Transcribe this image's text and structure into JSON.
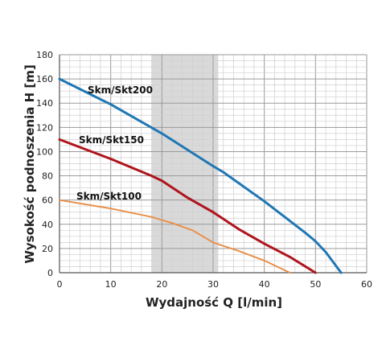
{
  "chart_data": {
    "type": "line",
    "xlabel": "Wydajność Q [l/min]",
    "ylabel": "Wysokość podnoszenia H [m]",
    "xlim": [
      0,
      60
    ],
    "ylim": [
      0,
      180
    ],
    "x_ticks": [
      "0",
      "10",
      "20",
      "30",
      "40",
      "50",
      "60"
    ],
    "y_ticks": [
      "0",
      "20",
      "40",
      "60",
      "80",
      "100",
      "120",
      "140",
      "160",
      "180"
    ],
    "grid": true,
    "highlight_band": {
      "x_from": 18,
      "x_to": 31,
      "color": "#d9d9d9"
    },
    "series": [
      {
        "name": "Skm/Skt200",
        "color": "#1f77b4",
        "points": [
          [
            0,
            160
          ],
          [
            10,
            139
          ],
          [
            20,
            115
          ],
          [
            30,
            88
          ],
          [
            32,
            83
          ],
          [
            40,
            59
          ],
          [
            48,
            33
          ],
          [
            50,
            26
          ],
          [
            52,
            17
          ],
          [
            55,
            0
          ]
        ]
      },
      {
        "name": "Skm/Skt150",
        "color": "#b0141c",
        "points": [
          [
            0,
            110
          ],
          [
            10,
            94
          ],
          [
            18,
            80
          ],
          [
            20,
            76
          ],
          [
            25,
            62
          ],
          [
            30,
            50
          ],
          [
            35,
            36
          ],
          [
            40,
            24
          ],
          [
            45,
            13
          ],
          [
            50,
            0
          ]
        ]
      },
      {
        "name": "Skm/Skt100",
        "color": "#e8904a",
        "points": [
          [
            0,
            60
          ],
          [
            10,
            53
          ],
          [
            18,
            46
          ],
          [
            22,
            41
          ],
          [
            26,
            35
          ],
          [
            30,
            25
          ],
          [
            35,
            18
          ],
          [
            40,
            10
          ],
          [
            45,
            0
          ]
        ]
      }
    ]
  }
}
